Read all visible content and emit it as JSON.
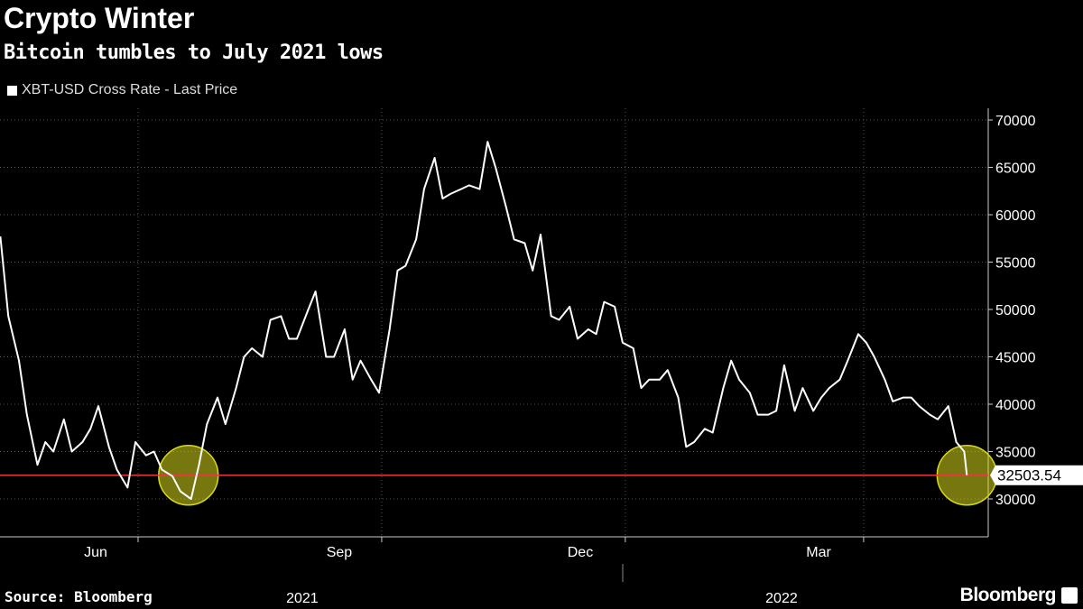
{
  "title": "Crypto Winter",
  "subtitle": "Bitcoin tumbles to July 2021 lows",
  "source": "Source: Bloomberg",
  "logo": "Bloomberg",
  "chart_data": {
    "type": "line",
    "legend": "top-left",
    "grid": true,
    "ylim": [
      25000,
      72000
    ],
    "y_axis_side": "right",
    "yticks": [
      "70000",
      "65000",
      "60000",
      "55000",
      "50000",
      "45000",
      "40000",
      "35000",
      "30000"
    ],
    "xticks": [
      {
        "label": "Jun",
        "date": "2021-06-15"
      },
      {
        "label": "Sep",
        "date": "2021-09-15"
      },
      {
        "label": "Dec",
        "date": "2021-12-15"
      },
      {
        "label": "Mar",
        "date": "2022-03-15"
      }
    ],
    "years": [
      {
        "label": "2021",
        "date": "2021-09-01"
      },
      {
        "label": "2022",
        "date": "2022-03-01"
      }
    ],
    "colors": {
      "line": "#ffffff",
      "reference": "#e8393d",
      "highlight": "#d8d81c"
    },
    "reference_line": {
      "value": 32503.54,
      "label": "32503.54"
    },
    "highlights": [
      {
        "date": "2021-07-20",
        "value": 32503.54
      },
      {
        "date": "2022-05-10",
        "value": 32503.54
      }
    ],
    "series": [
      {
        "name": "XBT-USD Cross Rate - Last Price",
        "points": [
          [
            "2021-05-10",
            57700
          ],
          [
            "2021-05-13",
            49300
          ],
          [
            "2021-05-17",
            44600
          ],
          [
            "2021-05-20",
            38900
          ],
          [
            "2021-05-24",
            33600
          ],
          [
            "2021-05-27",
            36000
          ],
          [
            "2021-05-30",
            35000
          ],
          [
            "2021-06-03",
            38400
          ],
          [
            "2021-06-06",
            35000
          ],
          [
            "2021-06-10",
            36000
          ],
          [
            "2021-06-13",
            37400
          ],
          [
            "2021-06-16",
            39800
          ],
          [
            "2021-06-20",
            35500
          ],
          [
            "2021-06-23",
            33100
          ],
          [
            "2021-06-27",
            31200
          ],
          [
            "2021-06-30",
            36000
          ],
          [
            "2021-07-04",
            34600
          ],
          [
            "2021-07-07",
            35000
          ],
          [
            "2021-07-10",
            33100
          ],
          [
            "2021-07-14",
            32400
          ],
          [
            "2021-07-17",
            30800
          ],
          [
            "2021-07-21",
            30000
          ],
          [
            "2021-07-24",
            33600
          ],
          [
            "2021-07-27",
            37900
          ],
          [
            "2021-07-31",
            40700
          ],
          [
            "2021-08-03",
            37900
          ],
          [
            "2021-08-07",
            41700
          ],
          [
            "2021-08-10",
            45000
          ],
          [
            "2021-08-13",
            45900
          ],
          [
            "2021-08-17",
            45000
          ],
          [
            "2021-08-20",
            48900
          ],
          [
            "2021-08-24",
            49300
          ],
          [
            "2021-08-27",
            46900
          ],
          [
            "2021-08-30",
            46900
          ],
          [
            "2021-09-03",
            49800
          ],
          [
            "2021-09-06",
            51900
          ],
          [
            "2021-09-10",
            45000
          ],
          [
            "2021-09-13",
            45000
          ],
          [
            "2021-09-17",
            47900
          ],
          [
            "2021-09-20",
            42600
          ],
          [
            "2021-09-23",
            44600
          ],
          [
            "2021-09-27",
            42600
          ],
          [
            "2021-09-30",
            41200
          ],
          [
            "2021-10-04",
            47900
          ],
          [
            "2021-10-07",
            54100
          ],
          [
            "2021-10-10",
            54600
          ],
          [
            "2021-10-14",
            57400
          ],
          [
            "2021-10-17",
            62700
          ],
          [
            "2021-10-21",
            66000
          ],
          [
            "2021-10-24",
            61700
          ],
          [
            "2021-10-27",
            62200
          ],
          [
            "2021-10-31",
            62700
          ],
          [
            "2021-11-03",
            63100
          ],
          [
            "2021-11-07",
            62700
          ],
          [
            "2021-11-10",
            67700
          ],
          [
            "2021-11-13",
            65000
          ],
          [
            "2021-11-17",
            60800
          ],
          [
            "2021-11-20",
            57400
          ],
          [
            "2021-11-24",
            57000
          ],
          [
            "2021-11-27",
            54100
          ],
          [
            "2021-11-30",
            57900
          ],
          [
            "2021-12-04",
            49300
          ],
          [
            "2021-12-07",
            48900
          ],
          [
            "2021-12-11",
            50300
          ],
          [
            "2021-12-14",
            46900
          ],
          [
            "2021-12-18",
            47900
          ],
          [
            "2021-12-21",
            47400
          ],
          [
            "2021-12-24",
            50800
          ],
          [
            "2021-12-28",
            50300
          ],
          [
            "2021-12-31",
            46500
          ],
          [
            "2022-01-04",
            45900
          ],
          [
            "2022-01-07",
            41700
          ],
          [
            "2022-01-10",
            42600
          ],
          [
            "2022-01-14",
            42600
          ],
          [
            "2022-01-17",
            43600
          ],
          [
            "2022-01-21",
            40700
          ],
          [
            "2022-01-24",
            35500
          ],
          [
            "2022-01-27",
            36000
          ],
          [
            "2022-01-31",
            37400
          ],
          [
            "2022-02-03",
            37000
          ],
          [
            "2022-02-07",
            41700
          ],
          [
            "2022-02-10",
            44600
          ],
          [
            "2022-02-13",
            42600
          ],
          [
            "2022-02-17",
            41200
          ],
          [
            "2022-02-20",
            38900
          ],
          [
            "2022-02-24",
            38900
          ],
          [
            "2022-02-27",
            39300
          ],
          [
            "2022-03-02",
            44100
          ],
          [
            "2022-03-06",
            39300
          ],
          [
            "2022-03-09",
            41700
          ],
          [
            "2022-03-13",
            39300
          ],
          [
            "2022-03-16",
            40700
          ],
          [
            "2022-03-19",
            41700
          ],
          [
            "2022-03-23",
            42600
          ],
          [
            "2022-03-26",
            44600
          ],
          [
            "2022-03-30",
            47400
          ],
          [
            "2022-04-02",
            46500
          ],
          [
            "2022-04-05",
            45000
          ],
          [
            "2022-04-09",
            42600
          ],
          [
            "2022-04-12",
            40300
          ],
          [
            "2022-04-16",
            40700
          ],
          [
            "2022-04-19",
            40700
          ],
          [
            "2022-04-22",
            39800
          ],
          [
            "2022-04-26",
            38900
          ],
          [
            "2022-04-29",
            38400
          ],
          [
            "2022-05-03",
            39800
          ],
          [
            "2022-05-06",
            36000
          ],
          [
            "2022-05-09",
            35000
          ],
          [
            "2022-05-10",
            32503.54
          ]
        ]
      }
    ]
  }
}
